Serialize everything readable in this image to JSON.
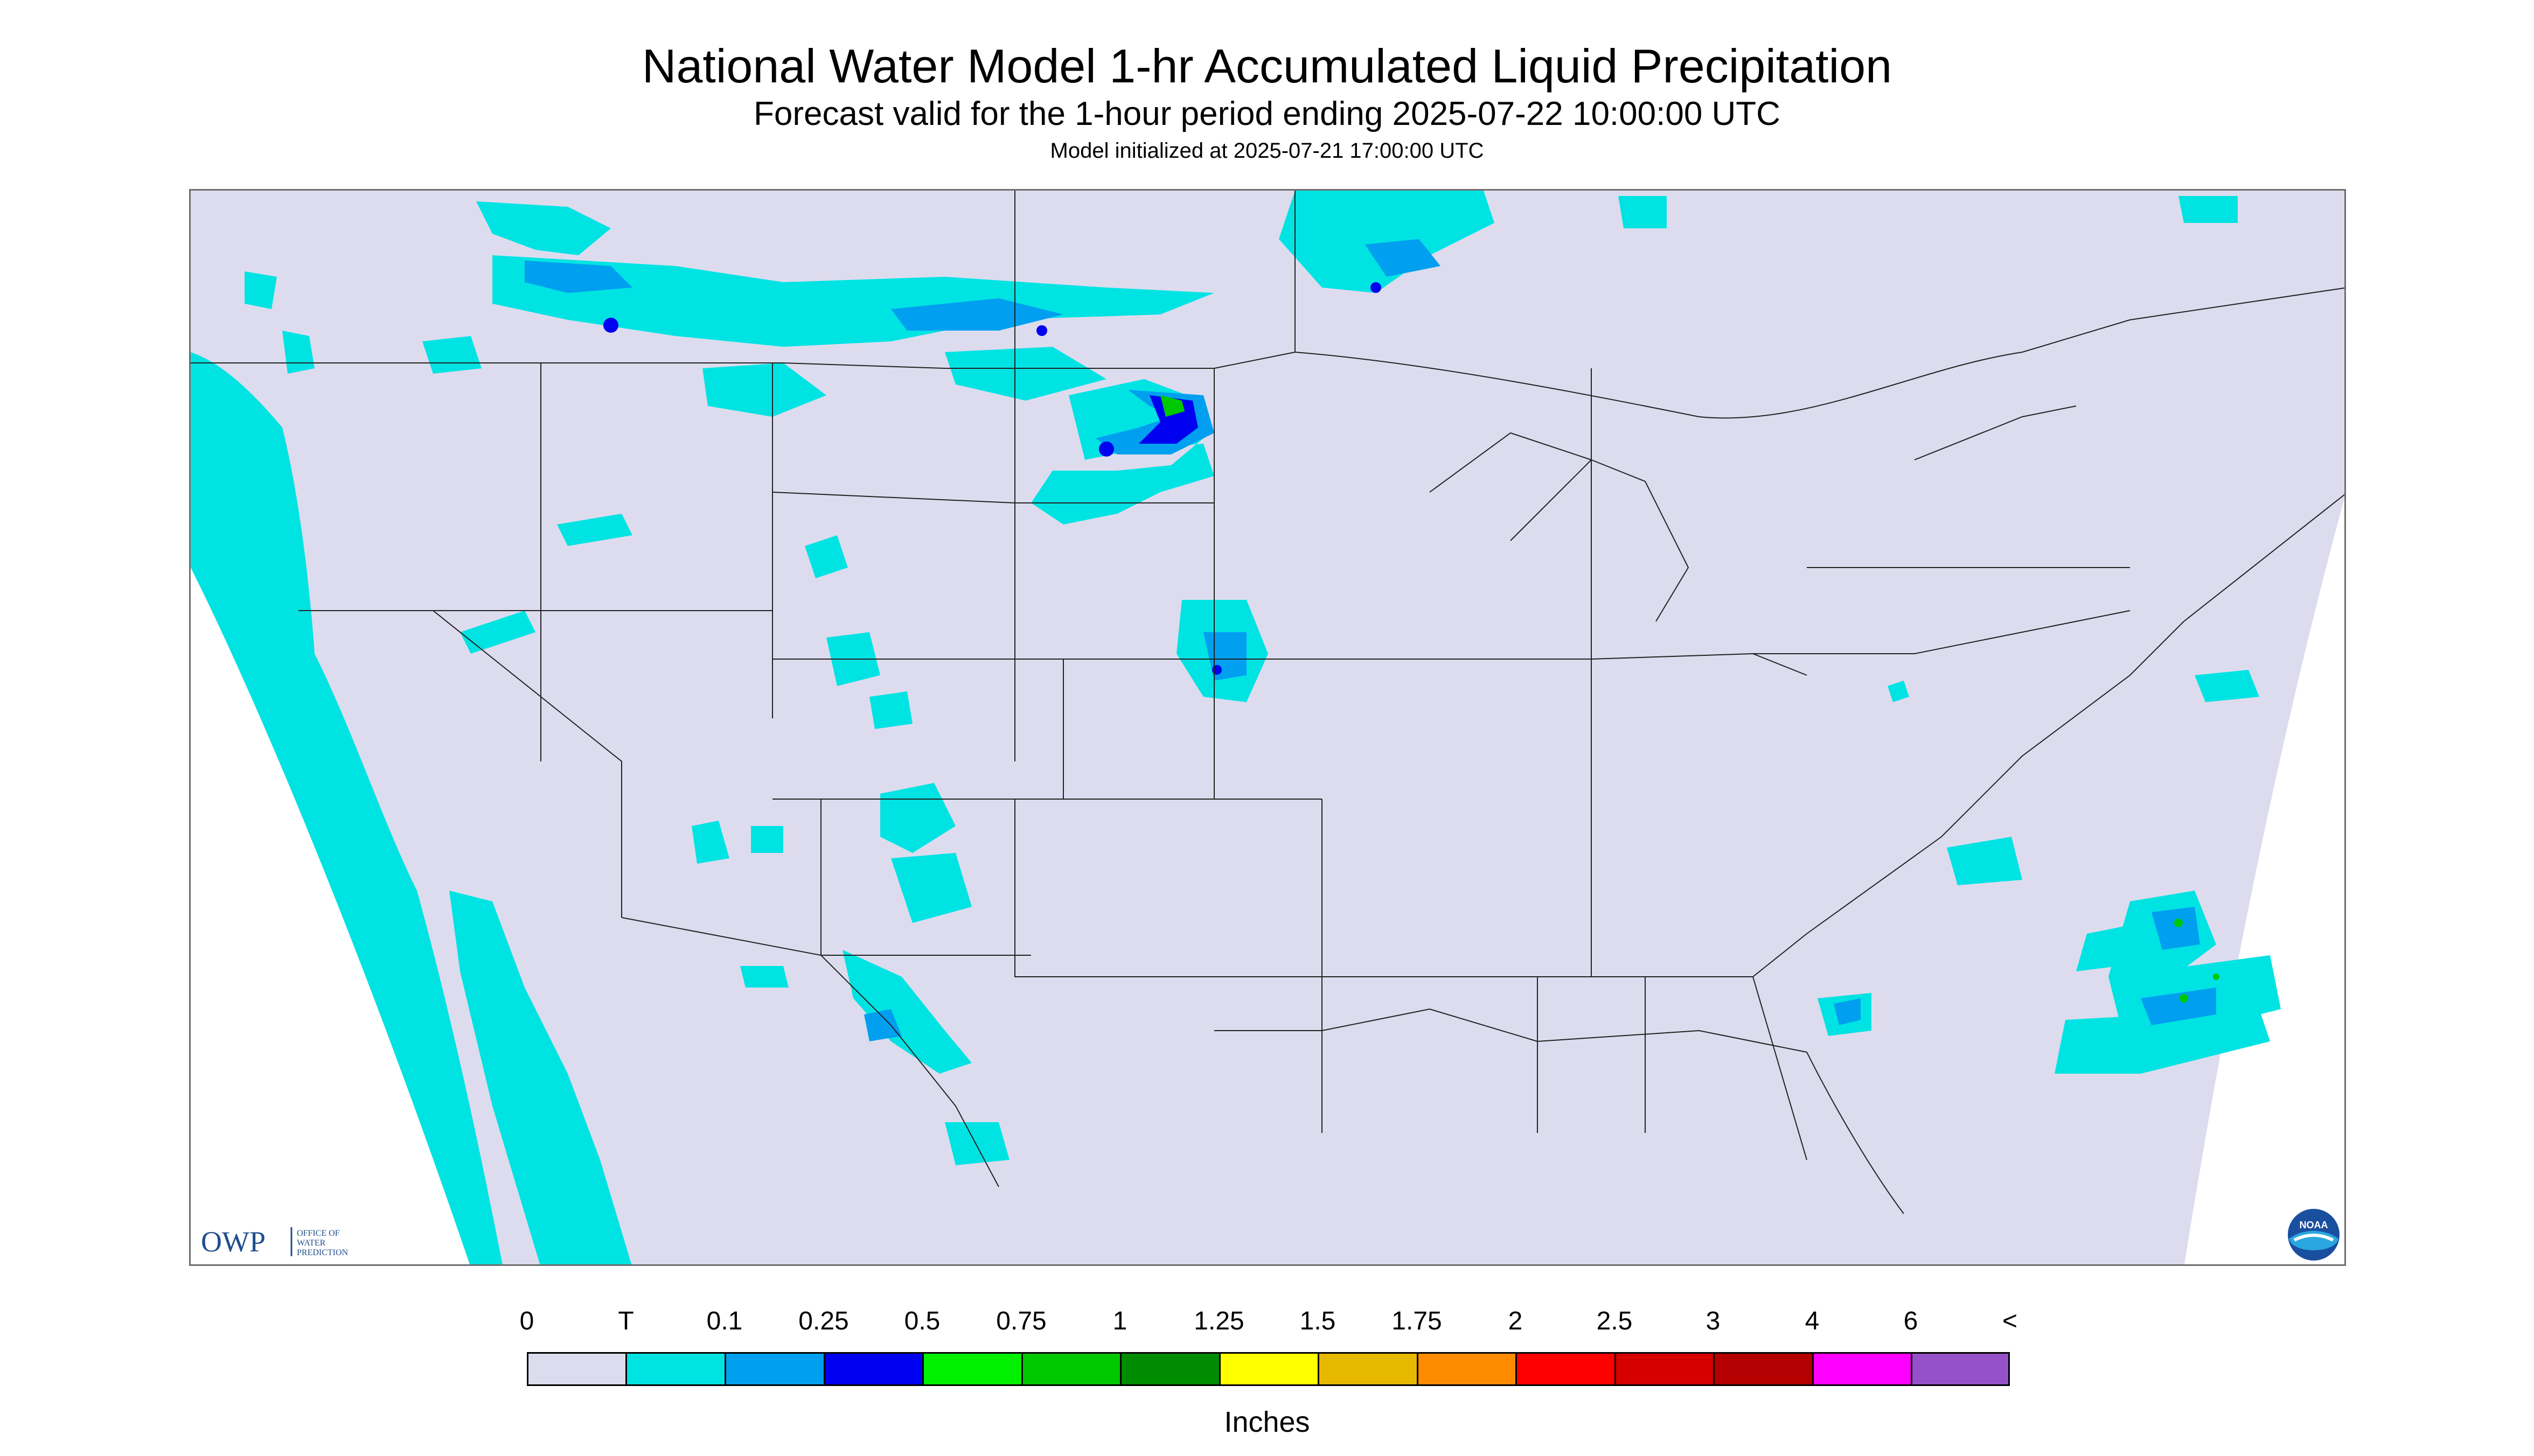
{
  "header": {
    "title": "National Water Model 1-hr Accumulated Liquid Precipitation",
    "subtitle": "Forecast valid for the 1-hour period ending 2025-07-22 10:00:00 UTC",
    "init_note": "Model initialized at 2025-07-21 17:00:00 UTC"
  },
  "logos": {
    "owp_mark": "OWP",
    "owp_text": [
      "OFFICE OF",
      "WATER",
      "PREDICTION"
    ],
    "noaa_text": "NOAA"
  },
  "legend": {
    "labels": [
      "0",
      "T",
      "0.1",
      "0.25",
      "0.5",
      "0.75",
      "1",
      "1.25",
      "1.5",
      "1.75",
      "2",
      "2.5",
      "3",
      "4",
      "6",
      "<"
    ],
    "colors": [
      "#dcdcee",
      "#00e3e3",
      "#009fef",
      "#0000f0",
      "#00f000",
      "#00c800",
      "#008c00",
      "#ffff00",
      "#e6b800",
      "#ff8c00",
      "#ff0000",
      "#d70000",
      "#b40000",
      "#ff00ff",
      "#9650c8"
    ],
    "units": "Inches"
  },
  "colors": {
    "map_background": "#dcdcee",
    "outside_domain": "#ffffff",
    "precip_trace": "#00e3e3",
    "precip_light": "#009fef",
    "precip_moderate": "#0000f0",
    "precip_heavy": "#00c800",
    "boundary_lines": "#222222"
  }
}
